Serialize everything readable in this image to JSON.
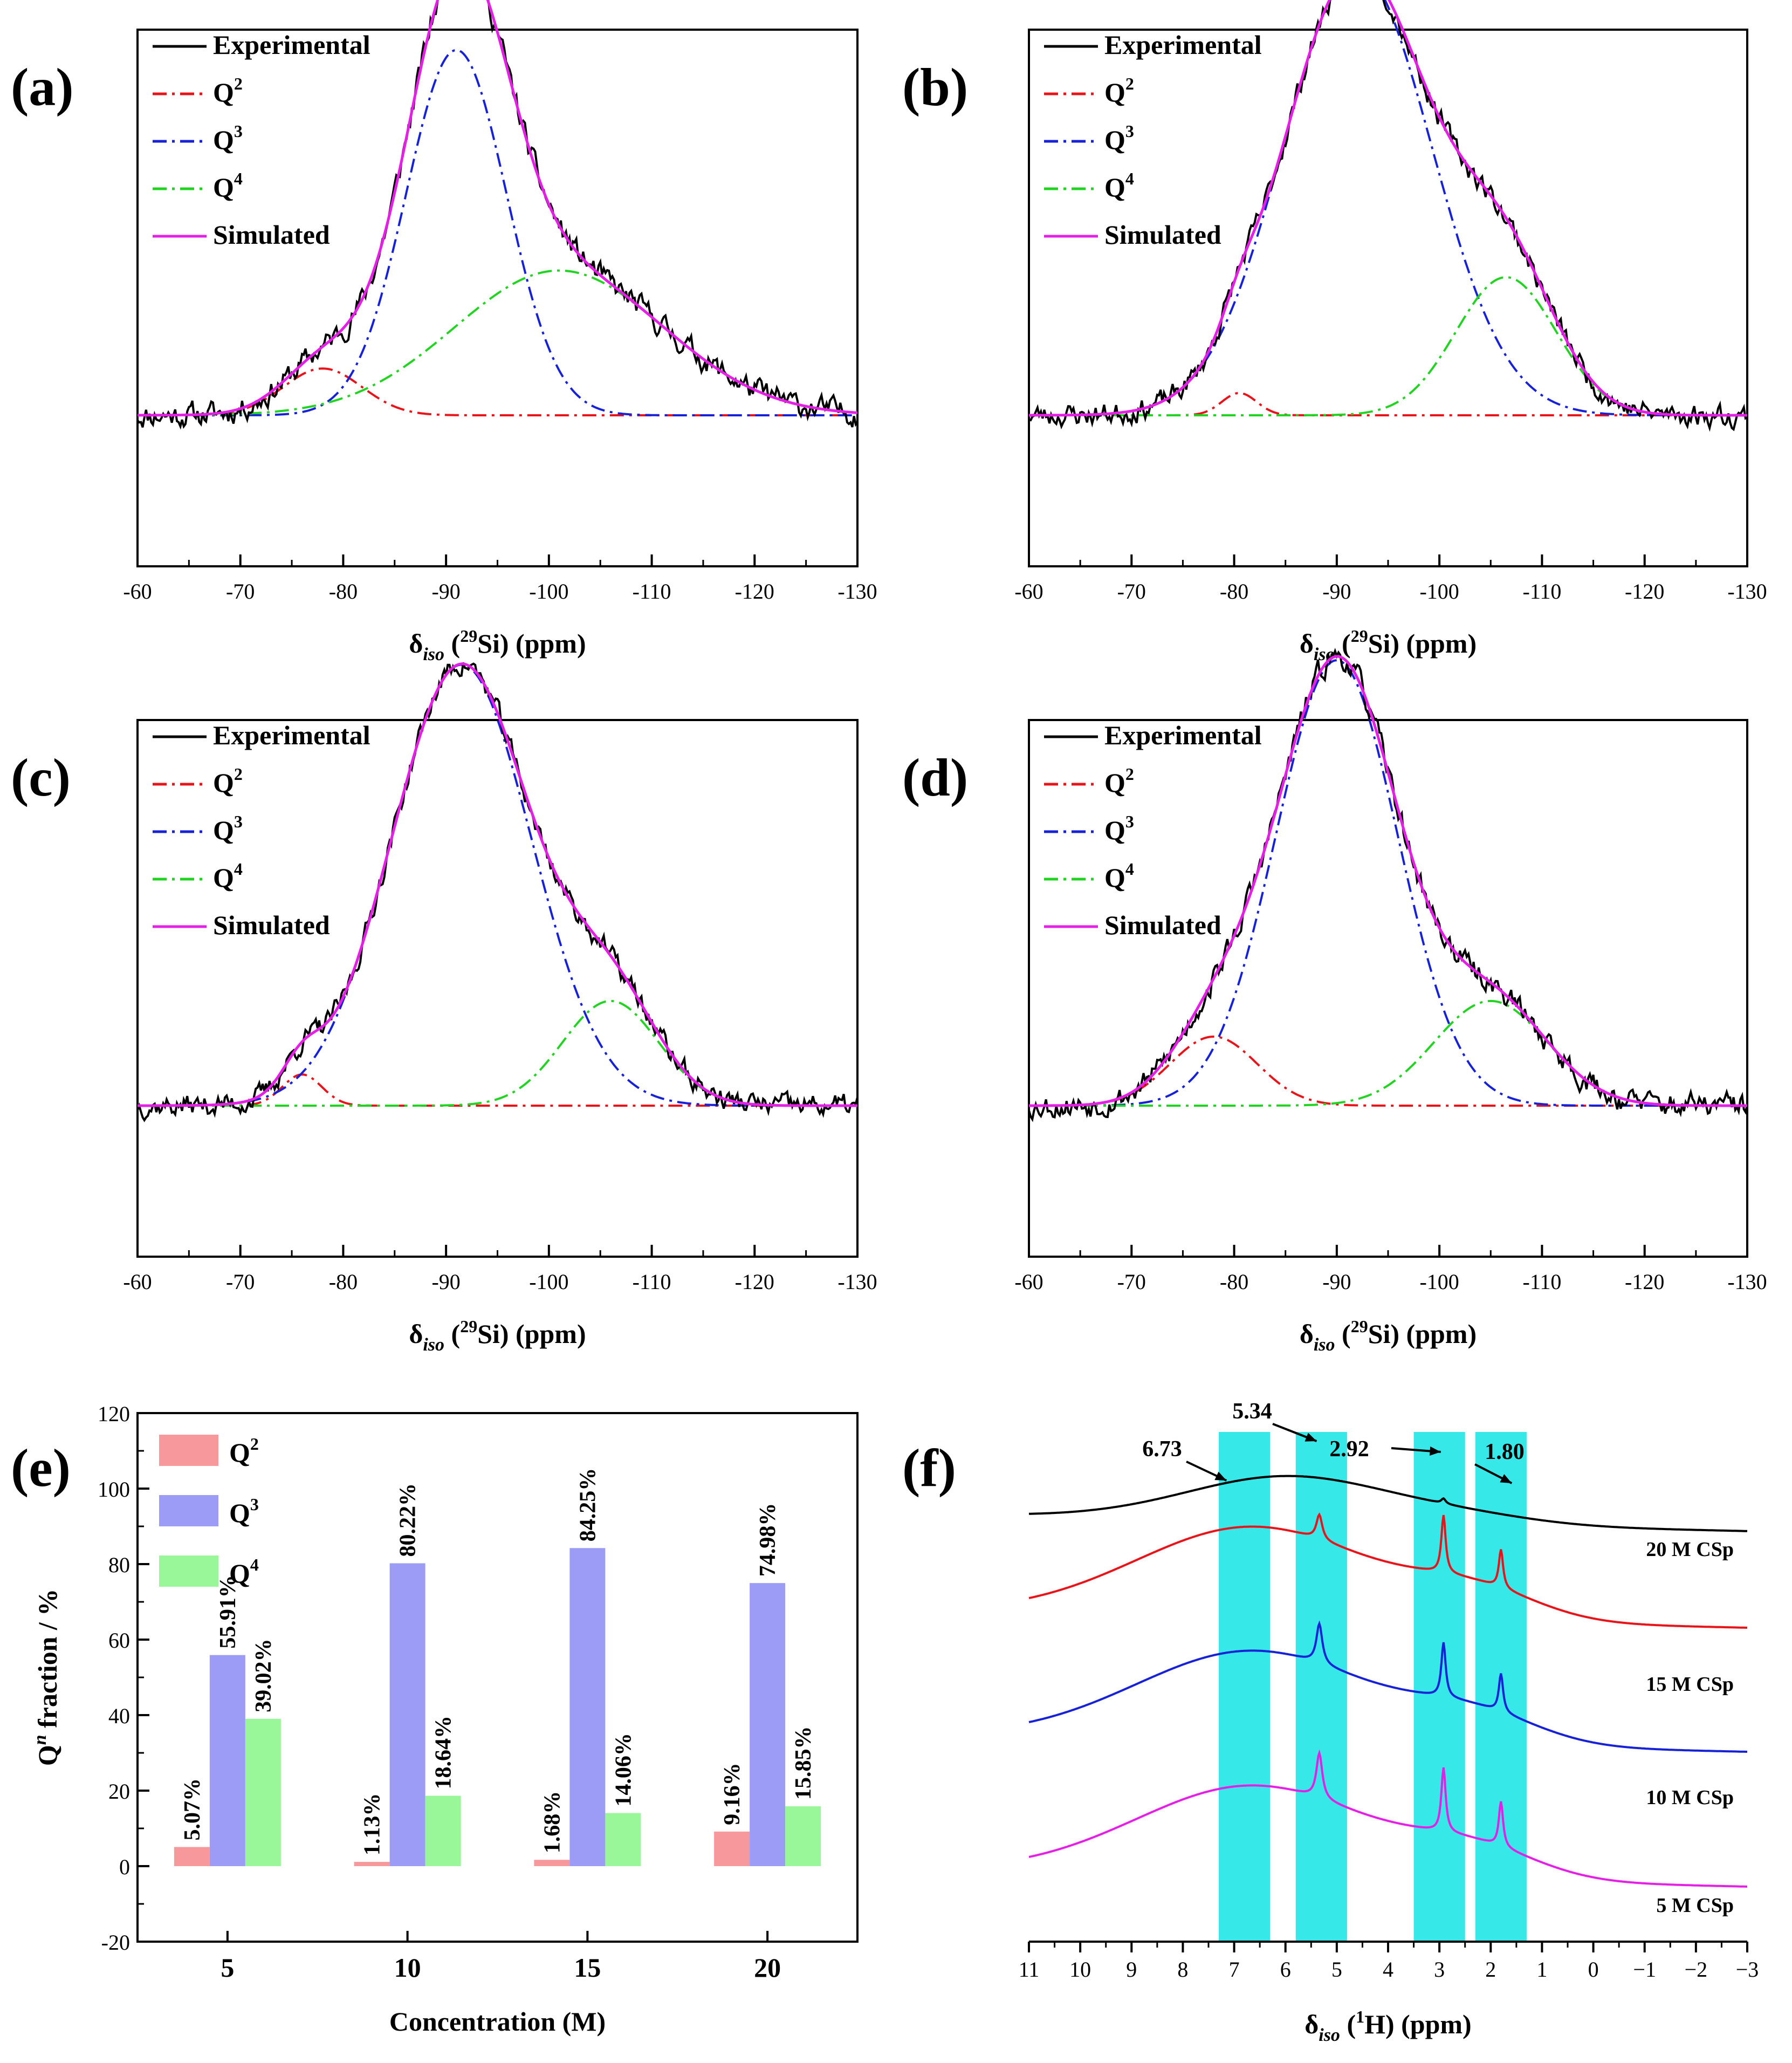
{
  "colors": {
    "experimental": "#000000",
    "q2": "#e8141a",
    "q3": "#1722d8",
    "q4": "#21d421",
    "simulated": "#e61fe6",
    "bar_q2": "#f7999c",
    "bar_q3": "#9c9cf7",
    "bar_q4": "#99f799",
    "highlight": "#37e8e8"
  },
  "chart_data": [
    {
      "id": "a",
      "type": "line",
      "panel_label": "(a)",
      "xlabel_prefix": "δ",
      "xlabel_sub": "iso",
      "xlabel_open": " (",
      "xlabel_sup": "29",
      "xlabel_rest": "Si) (ppm)",
      "xlim": [
        -60,
        -130
      ],
      "xticks": [
        "-60",
        "-70",
        "-80",
        "-90",
        "-100",
        "-110",
        "-120",
        "-130"
      ],
      "legend": [
        "Experimental",
        "Q",
        "Q",
        "Q",
        "Simulated"
      ],
      "legend_sup": [
        "",
        "2",
        "3",
        "4",
        ""
      ],
      "series": [
        {
          "name": "Q2",
          "center": -78,
          "fwhm": 9.0,
          "height": 0.105
        },
        {
          "name": "Q3",
          "center": -91,
          "fwhm": 11.5,
          "height": 0.82
        },
        {
          "name": "Q4",
          "center": -101,
          "fwhm": 24,
          "height": 0.325
        }
      ],
      "noise": 0.022,
      "seed": 11
    },
    {
      "id": "b",
      "type": "line",
      "panel_label": "(b)",
      "xlabel_prefix": "δ",
      "xlabel_sub": "iso",
      "xlabel_open": " (",
      "xlabel_sup": "29",
      "xlabel_rest": "Si) (ppm)",
      "xlim": [
        -60,
        -130
      ],
      "xticks": [
        "-60",
        "-70",
        "-80",
        "-90",
        "-100",
        "-110",
        "-120",
        "-130"
      ],
      "legend": [
        "Experimental",
        "Q",
        "Q",
        "Q",
        "Simulated"
      ],
      "legend_sup": [
        "",
        "2",
        "3",
        "4",
        ""
      ],
      "series": [
        {
          "name": "Q2",
          "center": -80.5,
          "fwhm": 4.0,
          "height": 0.05
        },
        {
          "name": "Q3",
          "center": -92,
          "fwhm": 17,
          "height": 1.0
        },
        {
          "name": "Q4",
          "center": -106.5,
          "fwhm": 11.5,
          "height": 0.31
        }
      ],
      "noise": 0.02,
      "seed": 23
    },
    {
      "id": "c",
      "type": "line",
      "panel_label": "(c)",
      "xlabel_prefix": "δ",
      "xlabel_sub": "iso",
      "xlabel_open": " (",
      "xlabel_sup": "29",
      "xlabel_rest": "Si) (ppm)",
      "xlim": [
        -60,
        -130
      ],
      "xticks": [
        "-60",
        "-70",
        "-80",
        "-90",
        "-100",
        "-110",
        "-120",
        "-130"
      ],
      "legend": [
        "Experimental",
        "Q",
        "Q",
        "Q",
        "Simulated"
      ],
      "legend_sup": [
        "",
        "2",
        "3",
        "4",
        ""
      ],
      "series": [
        {
          "name": "Q2",
          "center": -76,
          "fwhm": 4.5,
          "height": 0.07
        },
        {
          "name": "Q3",
          "center": -91.5,
          "fwhm": 16,
          "height": 0.99
        },
        {
          "name": "Q4",
          "center": -106,
          "fwhm": 11,
          "height": 0.235
        }
      ],
      "noise": 0.02,
      "seed": 37
    },
    {
      "id": "d",
      "type": "line",
      "panel_label": "(d)",
      "xlabel_prefix": "δ",
      "xlabel_sub": "iso",
      "xlabel_open": " (",
      "xlabel_sup": "29",
      "xlabel_rest": "Si) (ppm)",
      "xlim": [
        -60,
        -130
      ],
      "xticks": [
        "-60",
        "-70",
        "-80",
        "-90",
        "-100",
        "-110",
        "-120",
        "-130"
      ],
      "legend": [
        "Experimental",
        "Q",
        "Q",
        "Q",
        "Simulated"
      ],
      "legend_sup": [
        "",
        "2",
        "3",
        "4",
        ""
      ],
      "series": [
        {
          "name": "Q2",
          "center": -78,
          "fwhm": 10,
          "height": 0.155
        },
        {
          "name": "Q3",
          "center": -90,
          "fwhm": 14,
          "height": 1.0
        },
        {
          "name": "Q4",
          "center": -105,
          "fwhm": 13,
          "height": 0.235
        }
      ],
      "noise": 0.022,
      "seed": 53
    },
    {
      "id": "e",
      "type": "bar",
      "panel_label": "(e)",
      "categories": [
        "5",
        "10",
        "15",
        "20"
      ],
      "series": [
        {
          "name": "Q2",
          "legend_base": "Q",
          "legend_sup": "2",
          "values": [
            5.07,
            1.13,
            1.68,
            9.16
          ],
          "labels": [
            "5.07%",
            "1.13%",
            "1.68%",
            "9.16%"
          ]
        },
        {
          "name": "Q3",
          "legend_base": "Q",
          "legend_sup": "3",
          "values": [
            55.91,
            80.22,
            84.25,
            74.98
          ],
          "labels": [
            "55.91%",
            "80.22%",
            "84.25%",
            "74.98%"
          ]
        },
        {
          "name": "Q4",
          "legend_base": "Q",
          "legend_sup": "4",
          "values": [
            39.02,
            18.64,
            14.06,
            15.85
          ],
          "labels": [
            "39.02%",
            "18.64%",
            "14.06%",
            "15.85%"
          ]
        }
      ],
      "xlabel": "Concentration (M)",
      "ylabel_q": "Q",
      "ylabel_sup": "n",
      "ylabel_rest": " fraction / %",
      "ylim": [
        -20,
        120
      ],
      "yticks": [
        "-20",
        "0",
        "20",
        "40",
        "60",
        "80",
        "100",
        "120"
      ]
    },
    {
      "id": "f",
      "type": "line",
      "panel_label": "(f)",
      "xlabel_prefix": "δ",
      "xlabel_sub": "iso",
      "xlabel_open": " (",
      "xlabel_sup": "1",
      "xlabel_rest": "H) (ppm)",
      "xlim": [
        11,
        -3
      ],
      "xticks": [
        "11",
        "10",
        "9",
        "8",
        "7",
        "6",
        "5",
        "4",
        "3",
        "2",
        "1",
        "0",
        "−1",
        "−2",
        "−3"
      ],
      "highlight_bands": [
        [
          7.3,
          6.3
        ],
        [
          5.8,
          4.8
        ],
        [
          3.5,
          2.5
        ],
        [
          2.3,
          1.3
        ]
      ],
      "peak_labels": [
        {
          "text": "6.73",
          "x": 6.73
        },
        {
          "text": "5.34",
          "x": 5.34
        },
        {
          "text": "2.92",
          "x": 2.92
        },
        {
          "text": "1.80",
          "x": 1.8
        }
      ],
      "traces": [
        {
          "name": "20 M CSp",
          "color": "#e61fe6"
        },
        {
          "name": "15 M CSp",
          "color": "#1722d8"
        },
        {
          "name": "10 M CSp",
          "color": "#e8141a"
        },
        {
          "name": "5 M CSp",
          "color": "#000000"
        }
      ]
    }
  ]
}
